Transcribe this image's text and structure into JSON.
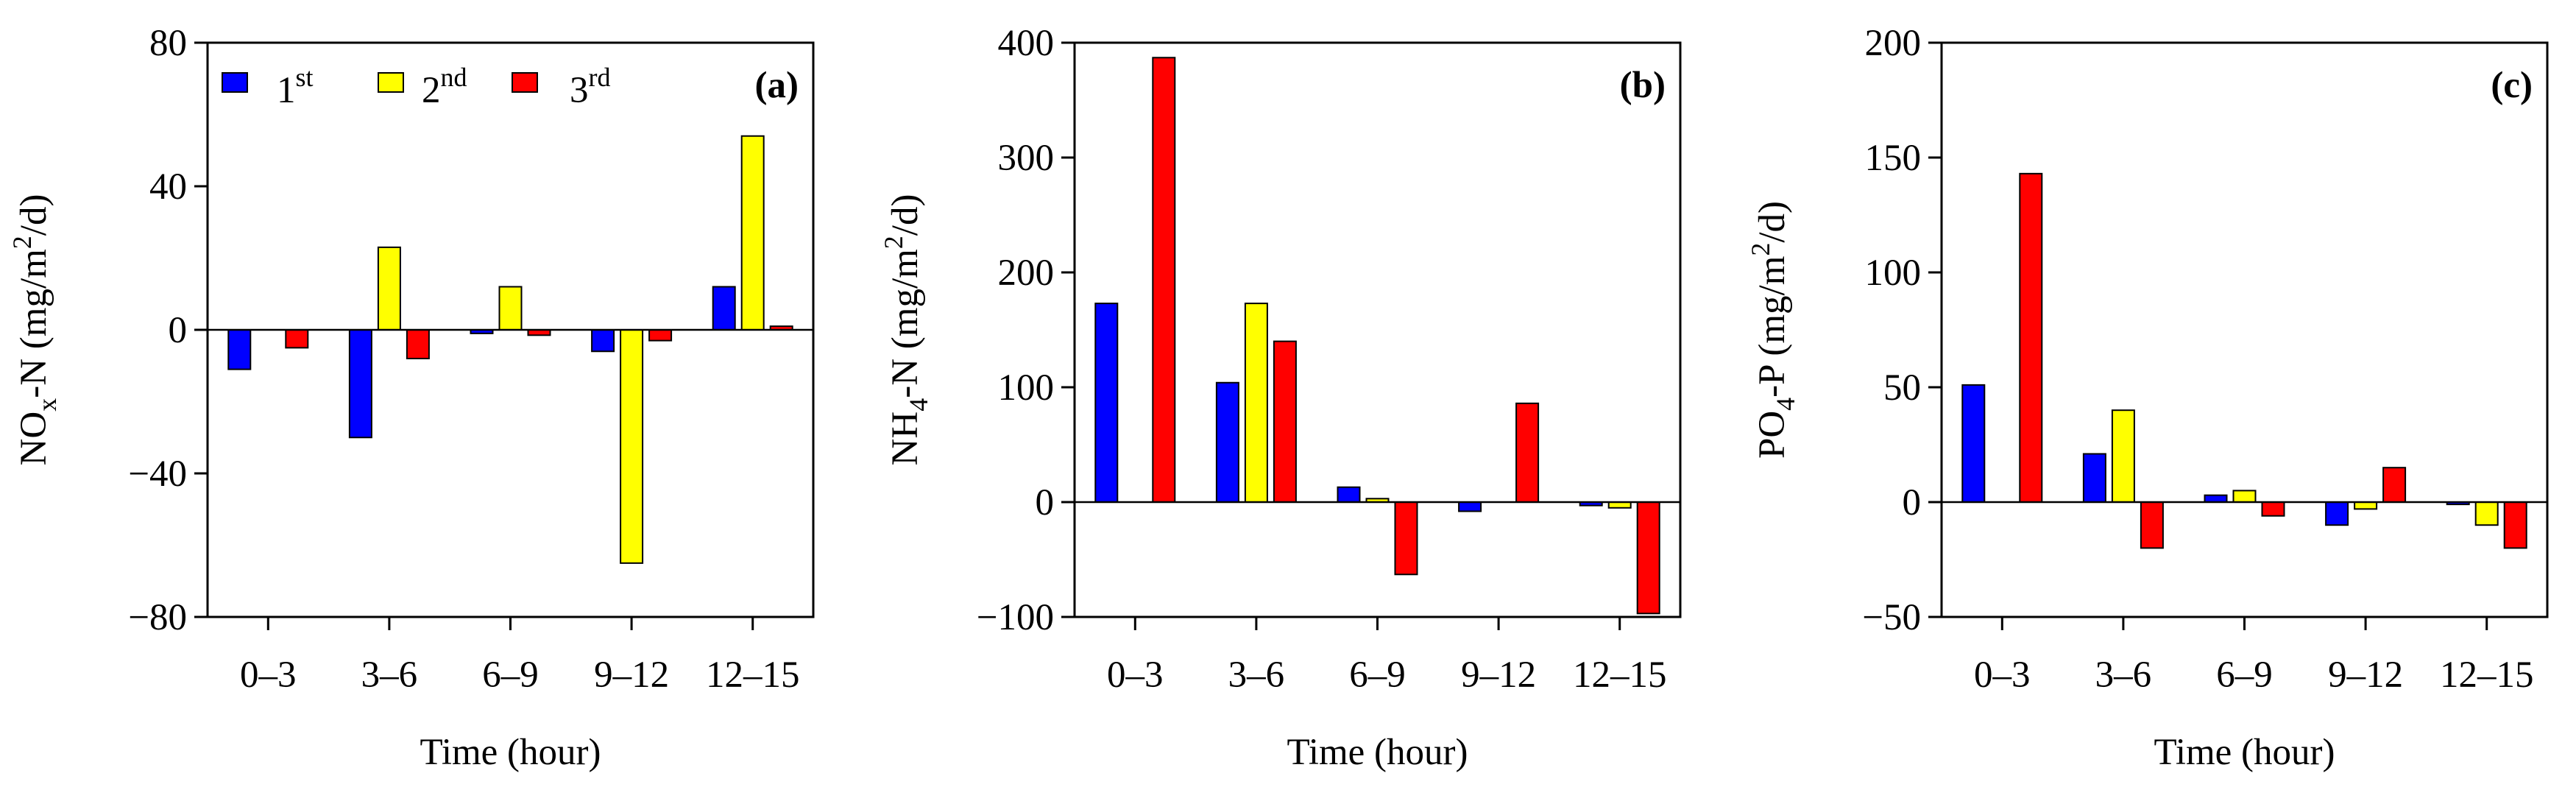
{
  "chart_data": [
    {
      "type": "bar",
      "panel_label": "(a)",
      "categories": [
        "0–3",
        "3–6",
        "6–9",
        "9–12",
        "12–15"
      ],
      "xlabel": "Time (hour)",
      "ylabel_parts": {
        "main": "NO",
        "sub": "x",
        "mid": "-N (mg/m",
        "sup": "2",
        "tail": "/d)"
      },
      "ylim": [
        -80,
        80
      ],
      "yticks": [
        -80,
        -40,
        0,
        40,
        80
      ],
      "ytick_labels": [
        "−80",
        "−40",
        "0",
        "40",
        "80"
      ],
      "series": [
        {
          "name": "1st",
          "values": [
            -11,
            -30,
            -1,
            -6,
            12
          ]
        },
        {
          "name": "2nd",
          "values": [
            0,
            23,
            12,
            -65,
            54
          ]
        },
        {
          "name": "3rd",
          "values": [
            -5,
            -8,
            -1.5,
            -3,
            1
          ]
        }
      ],
      "legend": {
        "placement": "top-left",
        "entries": [
          {
            "base": "1",
            "sup": "st"
          },
          {
            "base": "2",
            "sup": "nd"
          },
          {
            "base": "3",
            "sup": "rd"
          }
        ]
      }
    },
    {
      "type": "bar",
      "panel_label": "(b)",
      "categories": [
        "0–3",
        "3–6",
        "6–9",
        "9–12",
        "12–15"
      ],
      "xlabel": "Time (hour)",
      "ylabel_parts": {
        "main": "NH",
        "sub": "4",
        "mid": "-N (mg/m",
        "sup": "2",
        "tail": "/d)"
      },
      "ylim": [
        -100,
        400
      ],
      "yticks": [
        -100,
        0,
        100,
        200,
        300,
        400
      ],
      "ytick_labels": [
        "−100",
        "0",
        "100",
        "200",
        "300",
        "400"
      ],
      "series": [
        {
          "name": "1st",
          "values": [
            173,
            104,
            13,
            -8,
            -3
          ]
        },
        {
          "name": "2nd",
          "values": [
            0,
            173,
            3,
            0,
            -5
          ]
        },
        {
          "name": "3rd",
          "values": [
            387,
            140,
            -63,
            86,
            -97
          ]
        }
      ]
    },
    {
      "type": "bar",
      "panel_label": "(c)",
      "categories": [
        "0–3",
        "3–6",
        "6–9",
        "9–12",
        "12–15"
      ],
      "xlabel": "Time (hour)",
      "ylabel_parts": {
        "main": "PO",
        "sub": "4",
        "mid": "-P (mg/m",
        "sup": "2",
        "tail": "/d)"
      },
      "ylim": [
        -50,
        200
      ],
      "yticks": [
        -50,
        0,
        50,
        100,
        150,
        200
      ],
      "ytick_labels": [
        "−50",
        "0",
        "50",
        "100",
        "150",
        "200"
      ],
      "series": [
        {
          "name": "1st",
          "values": [
            51,
            21,
            3,
            -10,
            -1
          ]
        },
        {
          "name": "2nd",
          "values": [
            0,
            40,
            5,
            -3,
            -10
          ]
        },
        {
          "name": "3rd",
          "values": [
            143,
            -20,
            -6,
            15,
            -20
          ]
        }
      ]
    }
  ],
  "colors": {
    "series_1": "#0000ff",
    "series_2": "#ffff00",
    "series_3": "#ff0000",
    "outline": "#000000"
  }
}
